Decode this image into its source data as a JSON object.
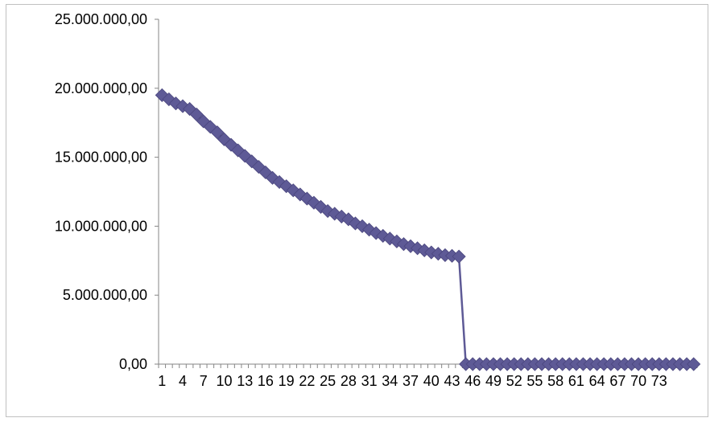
{
  "chart_data": {
    "type": "line",
    "title": "",
    "xlabel": "",
    "ylabel": "",
    "ylim": [
      0,
      25000000
    ],
    "y_ticks": [
      "0,00",
      "5.000.000,00",
      "10.000.000,00",
      "15.000.000,00",
      "20.000.000,00",
      "25.000.000,00"
    ],
    "x_tick_labels": [
      "1",
      "4",
      "7",
      "10",
      "13",
      "16",
      "19",
      "22",
      "25",
      "28",
      "31",
      "34",
      "37",
      "40",
      "43",
      "46",
      "49",
      "52",
      "55",
      "58",
      "61",
      "64",
      "67",
      "70",
      "73"
    ],
    "grid": false,
    "legend": "none",
    "series": [
      {
        "color": "#5e5a96",
        "marker": "diamond",
        "values": [
          19500000,
          19200000,
          18900000,
          18700000,
          18500000,
          18100000,
          17600000,
          17200000,
          16800000,
          16300000,
          15900000,
          15500000,
          15100000,
          14700000,
          14300000,
          13900000,
          13500000,
          13200000,
          12900000,
          12600000,
          12300000,
          12000000,
          11700000,
          11400000,
          11100000,
          10900000,
          10700000,
          10500000,
          10200000,
          10000000,
          9750000,
          9500000,
          9300000,
          9100000,
          8900000,
          8700000,
          8550000,
          8400000,
          8250000,
          8100000,
          8000000,
          7900000,
          7850000,
          7800000,
          0,
          0,
          0,
          0,
          0,
          0,
          0,
          0,
          0,
          0,
          0,
          0,
          0,
          0,
          0,
          0,
          0,
          0,
          0,
          0,
          0,
          0,
          0,
          0,
          0,
          0,
          0,
          0,
          0,
          0,
          0,
          0,
          0,
          0
        ]
      }
    ]
  }
}
